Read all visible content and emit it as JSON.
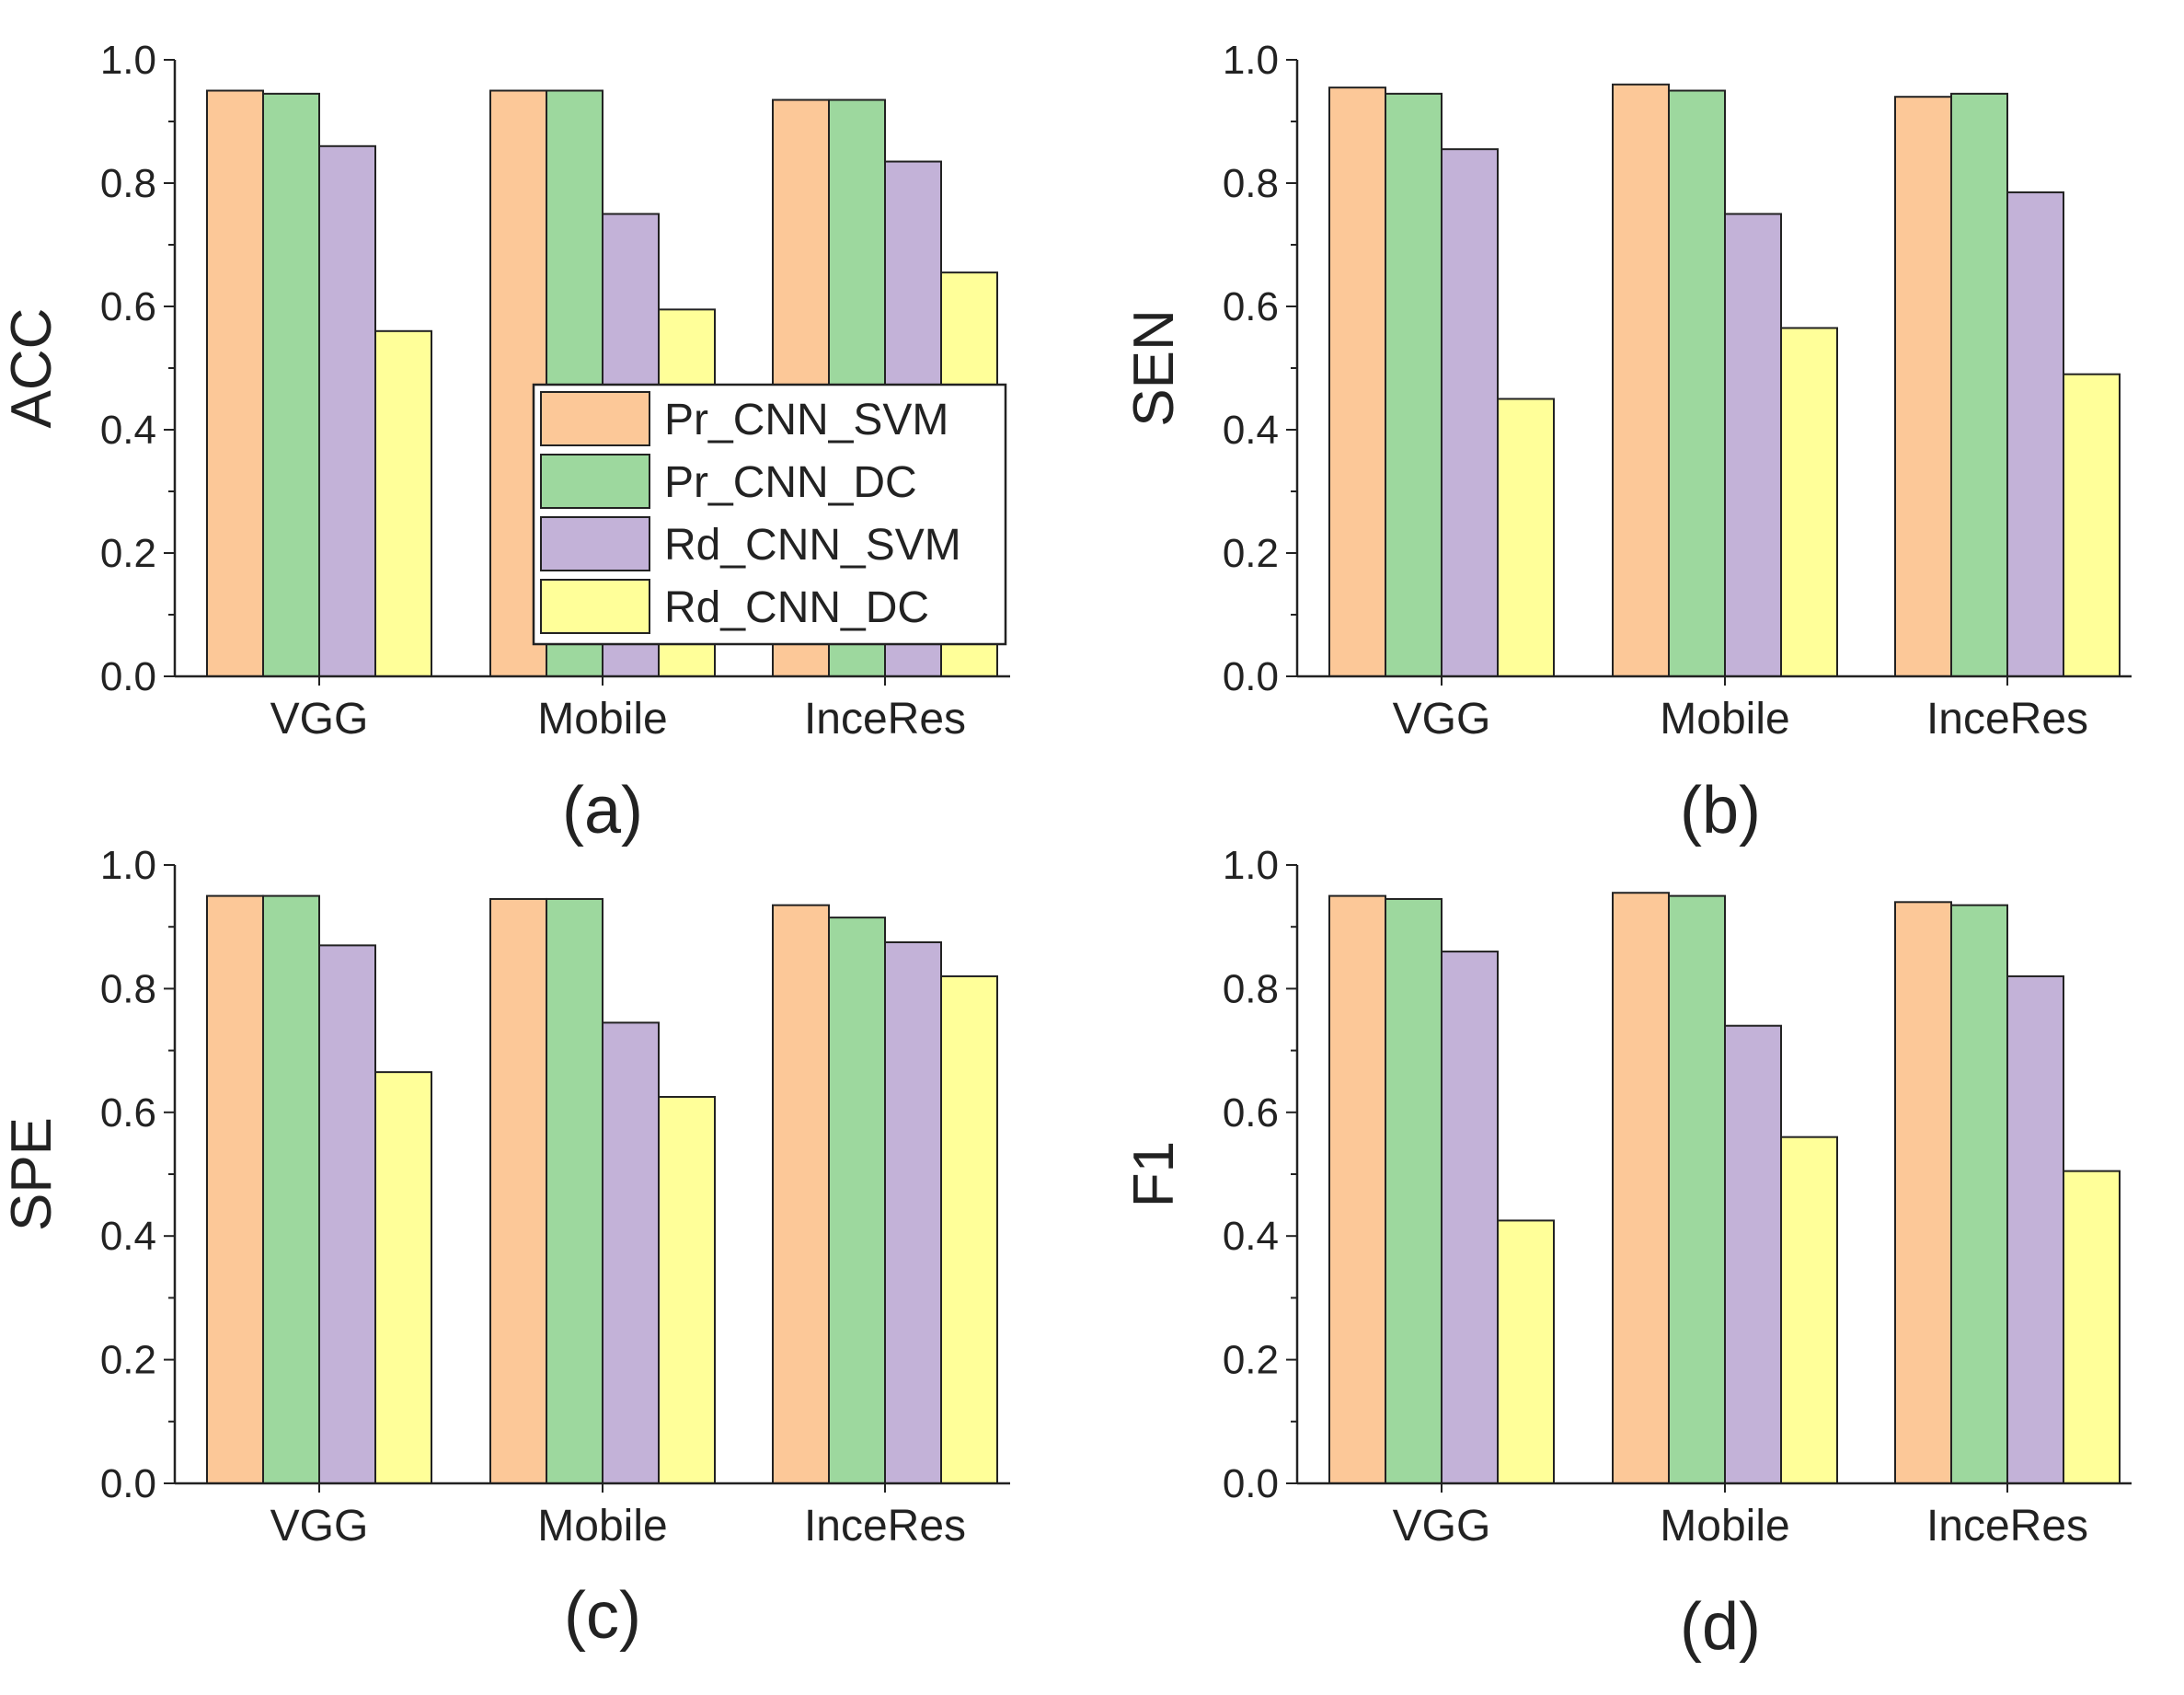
{
  "chart_data": [
    {
      "type": "bar",
      "panel_label": "(a)",
      "ylabel": "ACC",
      "ylim": [
        0,
        1.0
      ],
      "yticks": [
        "0.0",
        "0.2",
        "0.4",
        "0.6",
        "0.8",
        "1.0"
      ],
      "categories": [
        "VGG",
        "Mobile",
        "InceRes"
      ],
      "series": [
        {
          "name": "Pr_CNN_SVM",
          "values": [
            0.95,
            0.95,
            0.935
          ]
        },
        {
          "name": "Pr_CNN_DC",
          "values": [
            0.945,
            0.95,
            0.935
          ]
        },
        {
          "name": "Rd_CNN_SVM",
          "values": [
            0.86,
            0.75,
            0.835
          ]
        },
        {
          "name": "Rd_CNN_DC",
          "values": [
            0.56,
            0.595,
            0.655
          ]
        }
      ],
      "legend": "center-right"
    },
    {
      "type": "bar",
      "panel_label": "(b)",
      "ylabel": "SEN",
      "ylim": [
        0,
        1.0
      ],
      "yticks": [
        "0.0",
        "0.2",
        "0.4",
        "0.6",
        "0.8",
        "1.0"
      ],
      "categories": [
        "VGG",
        "Mobile",
        "InceRes"
      ],
      "series": [
        {
          "name": "Pr_CNN_SVM",
          "values": [
            0.955,
            0.96,
            0.94
          ]
        },
        {
          "name": "Pr_CNN_DC",
          "values": [
            0.945,
            0.95,
            0.945
          ]
        },
        {
          "name": "Rd_CNN_SVM",
          "values": [
            0.855,
            0.75,
            0.785
          ]
        },
        {
          "name": "Rd_CNN_DC",
          "values": [
            0.45,
            0.565,
            0.49
          ]
        }
      ]
    },
    {
      "type": "bar",
      "panel_label": "(c)",
      "ylabel": "SPE",
      "ylim": [
        0,
        1.0
      ],
      "yticks": [
        "0.0",
        "0.2",
        "0.4",
        "0.6",
        "0.8",
        "1.0"
      ],
      "categories": [
        "VGG",
        "Mobile",
        "InceRes"
      ],
      "series": [
        {
          "name": "Pr_CNN_SVM",
          "values": [
            0.95,
            0.945,
            0.935
          ]
        },
        {
          "name": "Pr_CNN_DC",
          "values": [
            0.95,
            0.945,
            0.915
          ]
        },
        {
          "name": "Rd_CNN_SVM",
          "values": [
            0.87,
            0.745,
            0.875
          ]
        },
        {
          "name": "Rd_CNN_DC",
          "values": [
            0.665,
            0.625,
            0.82
          ]
        }
      ]
    },
    {
      "type": "bar",
      "panel_label": "(d)",
      "ylabel": "F1",
      "ylim": [
        0,
        1.0
      ],
      "yticks": [
        "0.0",
        "0.2",
        "0.4",
        "0.6",
        "0.8",
        "1.0"
      ],
      "categories": [
        "VGG",
        "Mobile",
        "InceRes"
      ],
      "series": [
        {
          "name": "Pr_CNN_SVM",
          "values": [
            0.95,
            0.955,
            0.94
          ]
        },
        {
          "name": "Pr_CNN_DC",
          "values": [
            0.945,
            0.95,
            0.935
          ]
        },
        {
          "name": "Rd_CNN_SVM",
          "values": [
            0.86,
            0.74,
            0.82
          ]
        },
        {
          "name": "Rd_CNN_DC",
          "values": [
            0.425,
            0.56,
            0.505
          ]
        }
      ]
    }
  ],
  "colors": {
    "Pr_CNN_SVM": "#FCC898",
    "Pr_CNN_DC": "#9DD89E",
    "Rd_CNN_SVM": "#C3B2D8",
    "Rd_CNN_DC": "#FFFF99",
    "stroke": "#222222"
  }
}
